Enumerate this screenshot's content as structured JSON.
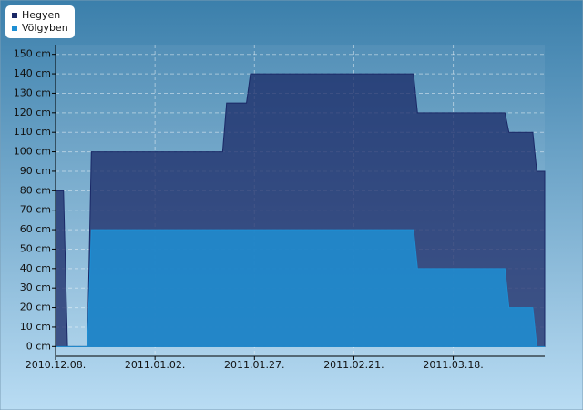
{
  "chart_data": {
    "type": "area",
    "x": [
      "2010.12.08.",
      "2010.12.10.",
      "2010.12.11.",
      "2010.12.16.",
      "2010.12.17.",
      "2011.01.19.",
      "2011.01.20.",
      "2011.01.25.",
      "2011.01.26.",
      "2011.03.08.",
      "2011.03.09.",
      "2011.03.31.",
      "2011.04.01.",
      "2011.04.07.",
      "2011.04.08.",
      "2011.04.10."
    ],
    "series": [
      {
        "name": "Hegyen",
        "color": "#1a2866",
        "values": [
          80,
          80,
          0,
          0,
          100,
          100,
          125,
          125,
          140,
          140,
          120,
          120,
          110,
          110,
          90,
          90
        ]
      },
      {
        "name": "Völgyben",
        "color": "#1e8fd4",
        "values": [
          0,
          0,
          0,
          0,
          60,
          60,
          60,
          60,
          60,
          60,
          40,
          40,
          20,
          20,
          0,
          0
        ]
      }
    ],
    "xlim": [
      "2010.12.08.",
      "2011.04.10."
    ],
    "xticks": [
      "2010.12.08.",
      "2011.01.02.",
      "2011.01.27.",
      "2011.02.21.",
      "2011.03.18."
    ],
    "ylim": [
      -5,
      155
    ],
    "yticks": [
      {
        "value": 0,
        "label": "0 cm"
      },
      {
        "value": 10,
        "label": "10 cm"
      },
      {
        "value": 20,
        "label": "20 cm"
      },
      {
        "value": 30,
        "label": "30 cm"
      },
      {
        "value": 40,
        "label": "40 cm"
      },
      {
        "value": 50,
        "label": "50 cm"
      },
      {
        "value": 60,
        "label": "60 cm"
      },
      {
        "value": 70,
        "label": "70 cm"
      },
      {
        "value": 80,
        "label": "80 cm"
      },
      {
        "value": 90,
        "label": "90 cm"
      },
      {
        "value": 100,
        "label": "100 cm"
      },
      {
        "value": 110,
        "label": "110 cm"
      },
      {
        "value": 120,
        "label": "120 cm"
      },
      {
        "value": 130,
        "label": "130 cm"
      },
      {
        "value": 140,
        "label": "140 cm"
      },
      {
        "value": 150,
        "label": "150 cm"
      }
    ],
    "grid": true,
    "legend": "top-left"
  }
}
